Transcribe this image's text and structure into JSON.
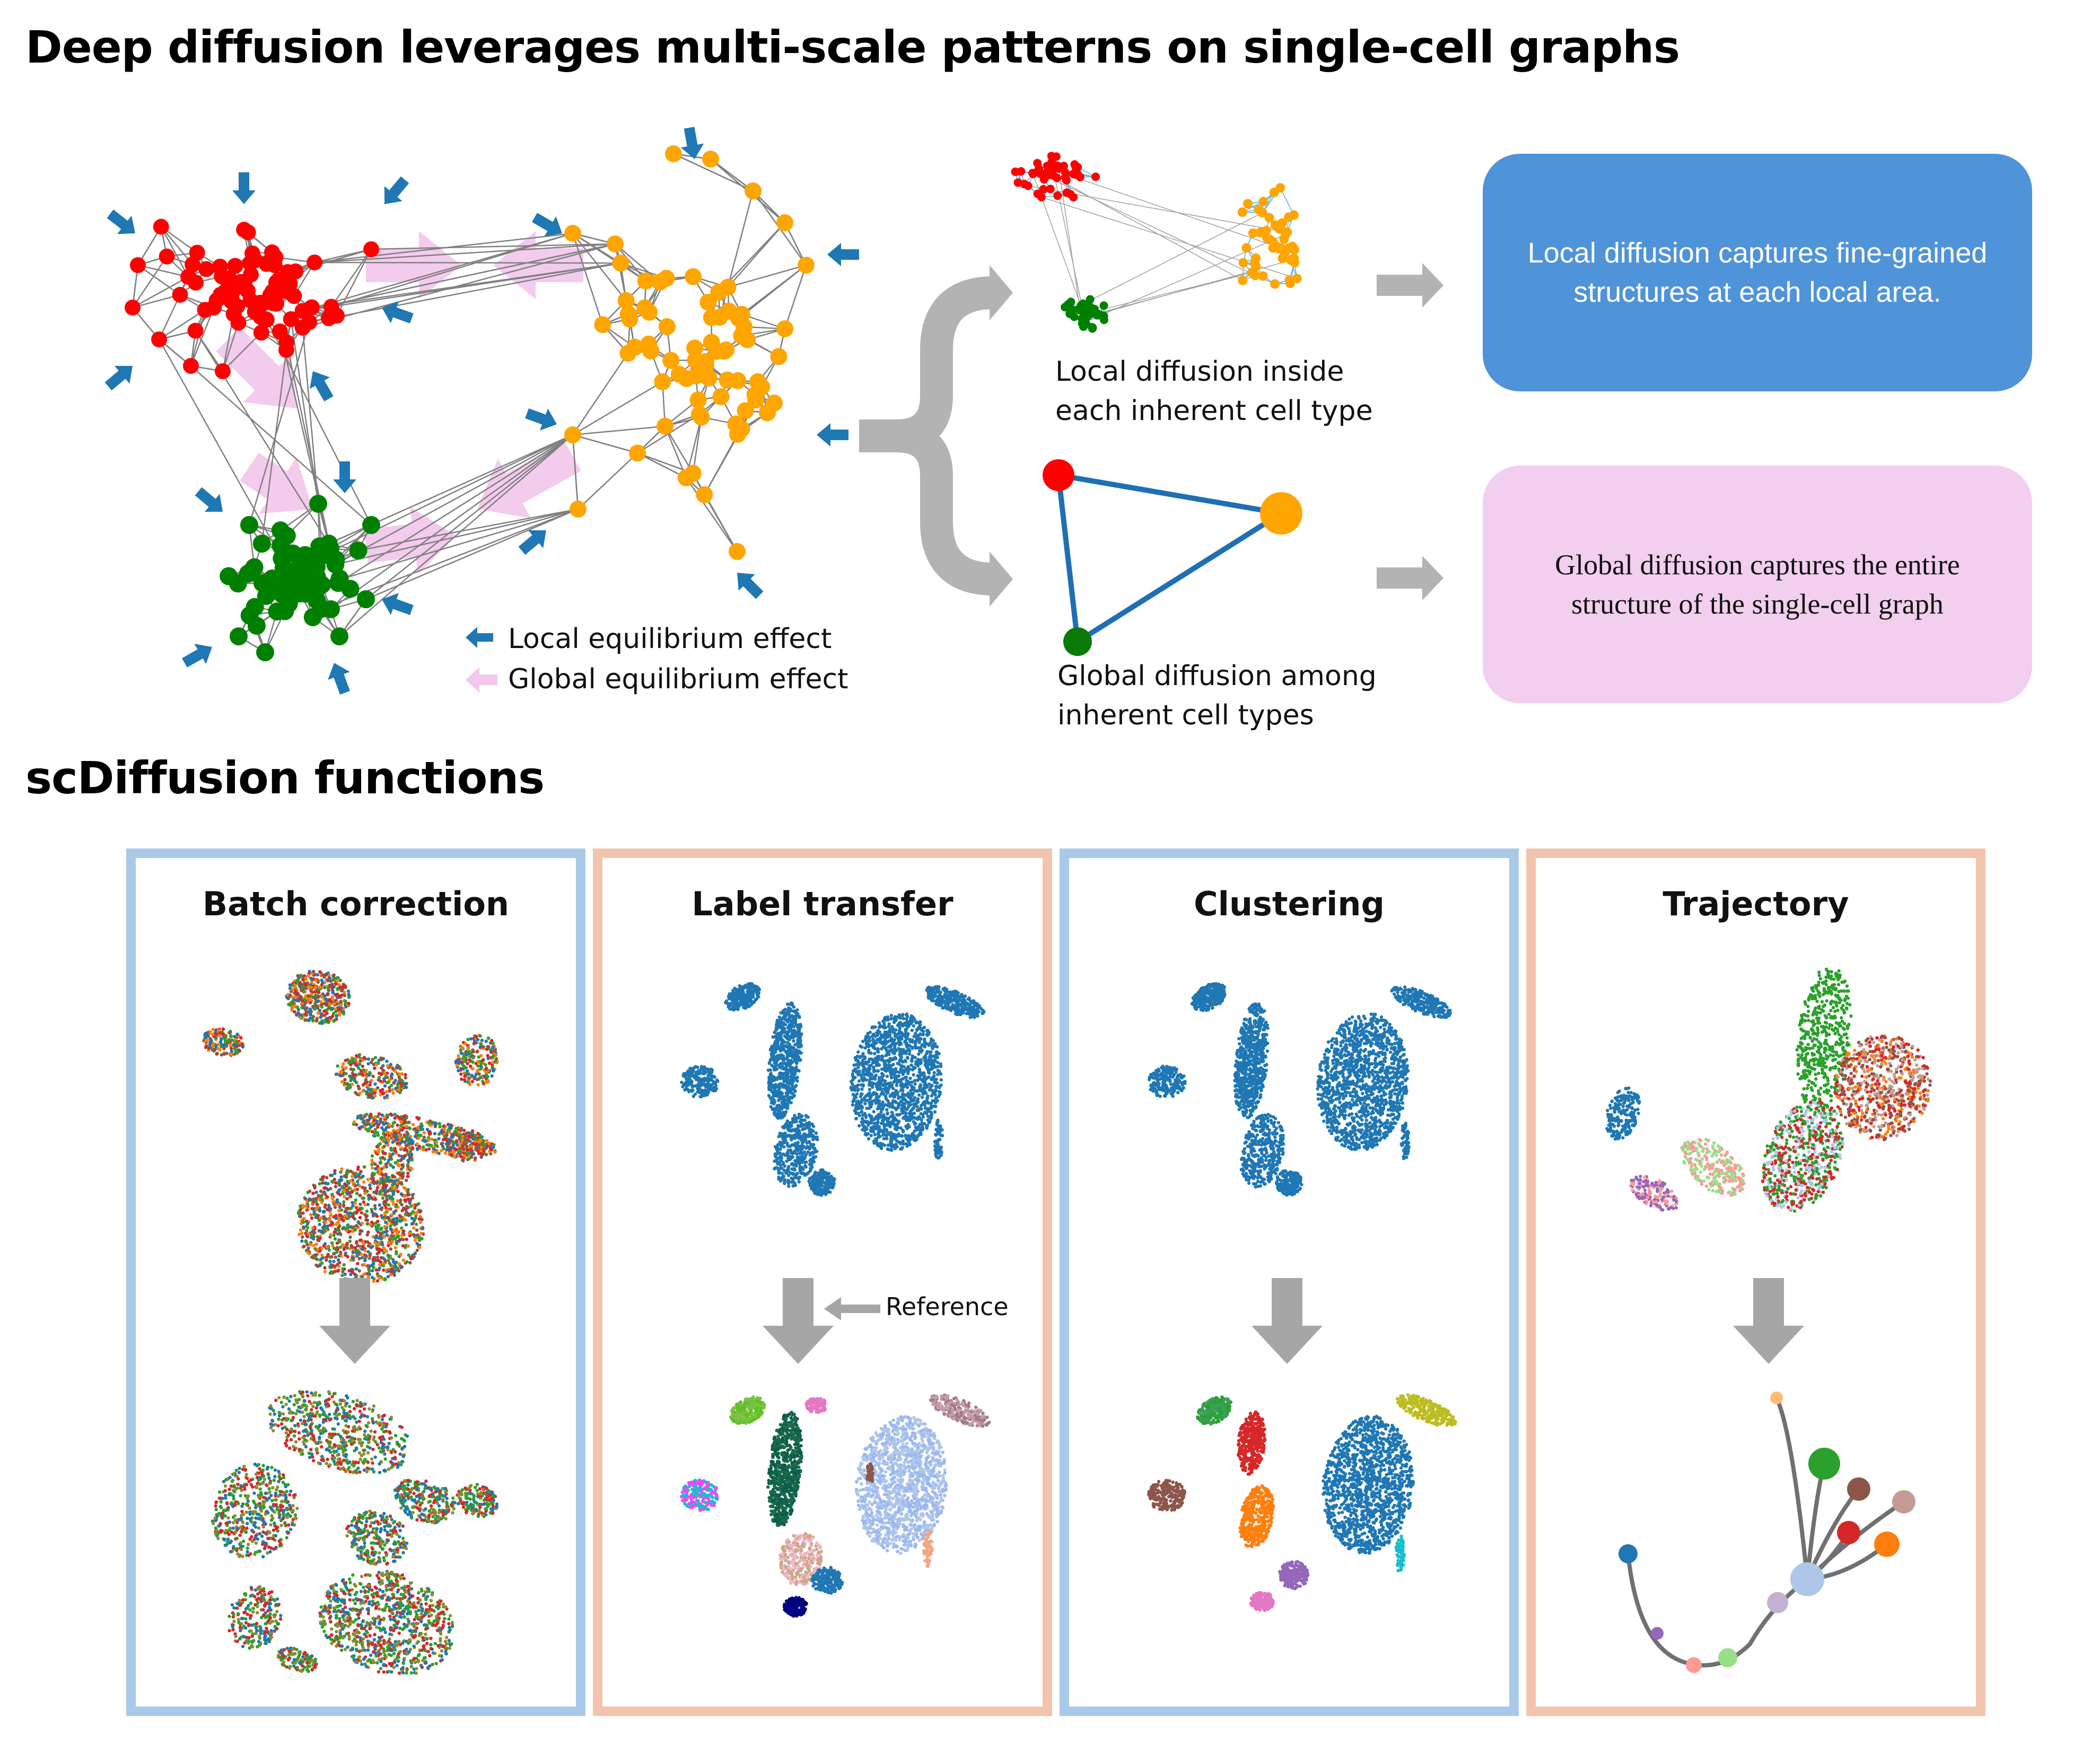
{
  "title": "Deep diffusion leverages multi-scale patterns on single-cell graphs",
  "subtitle": "scDiffusion functions",
  "colors": {
    "red_cluster": "#ff0000",
    "orange_cluster": "#ffa500",
    "green_cluster": "#008000",
    "local_arrow": "#1f77b4",
    "global_arrow": "#f2c8ec",
    "edge": "#808080",
    "gray_arrow": "#aaaaaa",
    "local_box": "#4f93d9",
    "global_box": "#f2cfee",
    "panel_blue": "#a9c9e8",
    "panel_peach": "#f2c4ad"
  },
  "legend": {
    "local": "Local equilibrium effect",
    "global": "Global equilibrium effect"
  },
  "captions": {
    "local_line1": "Local  diffusion inside",
    "local_line2": "each inherent cell type",
    "global_line1": "Global diffusion among",
    "global_line2": "inherent cell types"
  },
  "boxes": {
    "local": "Local diffusion captures fine-grained structures at each local area.",
    "global": "Global diffusion captures the entire structure of the single-cell graph"
  },
  "panels": [
    {
      "title": "Batch correction"
    },
    {
      "title": "Label transfer",
      "annotation": "Reference"
    },
    {
      "title": "Clustering"
    },
    {
      "title": "Trajectory"
    }
  ]
}
